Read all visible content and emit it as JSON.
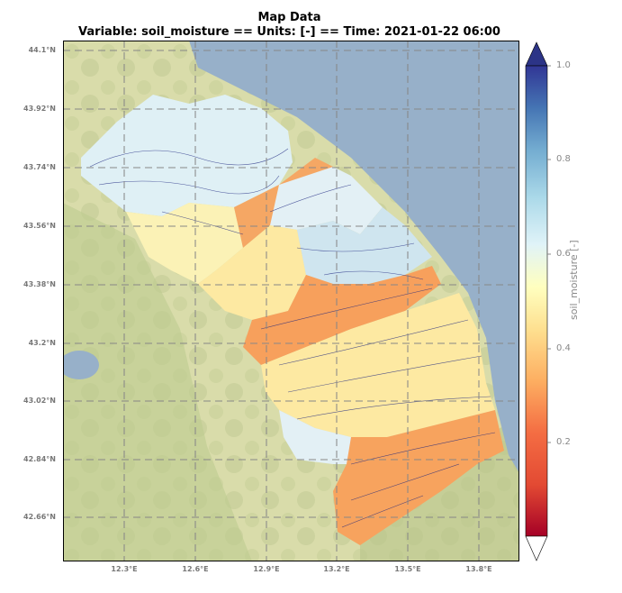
{
  "title": "Map Data",
  "subtitle": "Variable: soil_moisture == Units: [-] == Time: 2021-01-22 06:00",
  "axes": {
    "lat_ticks": [
      "44.1°N",
      "43.92°N",
      "43.74°N",
      "43.56°N",
      "43.38°N",
      "43.2°N",
      "43.02°N",
      "42.84°N",
      "42.66°N"
    ],
    "lon_ticks": [
      "12.3°E",
      "12.6°E",
      "12.9°E",
      "13.2°E",
      "13.5°E",
      "13.8°E"
    ]
  },
  "colorbar": {
    "label": "soil_moisture [-]",
    "ticks": [
      "1.0",
      "0.8",
      "0.6",
      "0.4",
      "0.2"
    ],
    "colors": [
      "#a50026",
      "#f46d43",
      "#fdae61",
      "#fee090",
      "#ffffbf",
      "#e0f3f8",
      "#abd9e9",
      "#74add1",
      "#4575b4",
      "#313695"
    ]
  },
  "colors": {
    "sea": "#97b0c9",
    "land": "#d8dca8",
    "grid": "#888888",
    "river": "#1a237e"
  }
}
